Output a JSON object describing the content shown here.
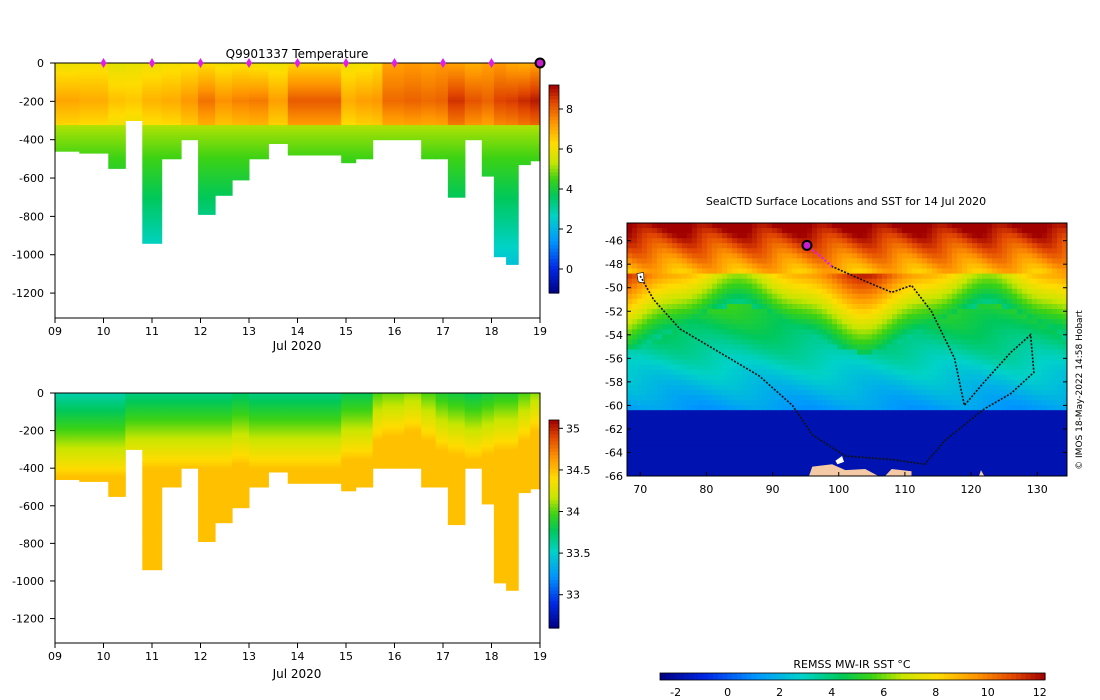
{
  "chart_data": [
    {
      "id": "temperature",
      "type": "heatmap",
      "title": "Q9901337  Temperature",
      "xlabel": "Jul 2020",
      "ylabel": "",
      "x_ticks": [
        "09",
        "10",
        "11",
        "12",
        "13",
        "14",
        "15",
        "16",
        "17",
        "18",
        "19"
      ],
      "xlim": [
        9,
        19
      ],
      "y_ticks": [
        "0",
        "-200",
        "-400",
        "-600",
        "-800",
        "-1000",
        "-1200"
      ],
      "ylim": [
        -1330,
        0
      ],
      "colorbar": {
        "ticks": [
          "0",
          "2",
          "4",
          "6",
          "8"
        ],
        "range": [
          -1.2,
          9.2
        ]
      },
      "profiles": [
        {
          "t": 9.0,
          "max_depth": 460,
          "surf": 6.0,
          "peak": 7.1
        },
        {
          "t": 9.5,
          "max_depth": 470,
          "surf": 6.1,
          "peak": 7.0
        },
        {
          "t": 10.1,
          "max_depth": 550,
          "surf": 5.8,
          "peak": 6.7
        },
        {
          "t": 10.45,
          "max_depth": 300,
          "surf": 5.9,
          "peak": 6.6
        },
        {
          "t": 10.8,
          "max_depth": 940,
          "surf": 6.0,
          "peak": 6.9
        },
        {
          "t": 11.2,
          "max_depth": 500,
          "surf": 6.1,
          "peak": 7.0
        },
        {
          "t": 11.6,
          "max_depth": 400,
          "surf": 6.2,
          "peak": 7.3
        },
        {
          "t": 11.95,
          "max_depth": 790,
          "surf": 6.3,
          "peak": 7.8
        },
        {
          "t": 12.3,
          "max_depth": 690,
          "surf": 6.1,
          "peak": 7.4
        },
        {
          "t": 12.65,
          "max_depth": 610,
          "surf": 6.2,
          "peak": 7.6
        },
        {
          "t": 13.0,
          "max_depth": 500,
          "surf": 6.1,
          "peak": 7.7
        },
        {
          "t": 13.4,
          "max_depth": 420,
          "surf": 6.0,
          "peak": 7.2
        },
        {
          "t": 13.8,
          "max_depth": 480,
          "surf": 6.4,
          "peak": 8.1
        },
        {
          "t": 14.9,
          "max_depth": 520,
          "surf": 6.0,
          "peak": 7.0
        },
        {
          "t": 15.2,
          "max_depth": 500,
          "surf": 6.1,
          "peak": 7.2
        },
        {
          "t": 15.55,
          "max_depth": 400,
          "surf": 6.3,
          "peak": 7.3
        },
        {
          "t": 15.75,
          "max_depth": 400,
          "surf": 7.2,
          "peak": 7.9
        },
        {
          "t": 16.2,
          "max_depth": 400,
          "surf": 7.3,
          "peak": 8.0
        },
        {
          "t": 16.55,
          "max_depth": 500,
          "surf": 7.2,
          "peak": 7.9
        },
        {
          "t": 16.85,
          "max_depth": 500,
          "surf": 7.3,
          "peak": 8.0
        },
        {
          "t": 17.1,
          "max_depth": 700,
          "surf": 7.2,
          "peak": 8.6
        },
        {
          "t": 17.45,
          "max_depth": 400,
          "surf": 7.0,
          "peak": 8.2
        },
        {
          "t": 17.8,
          "max_depth": 590,
          "surf": 7.2,
          "peak": 8.0
        },
        {
          "t": 18.05,
          "max_depth": 1010,
          "surf": 7.3,
          "peak": 8.4
        },
        {
          "t": 18.3,
          "max_depth": 1050,
          "surf": 7.1,
          "peak": 8.5
        },
        {
          "t": 18.55,
          "max_depth": 530,
          "surf": 7.0,
          "peak": 8.7
        },
        {
          "t": 18.8,
          "max_depth": 510,
          "surf": 7.2,
          "peak": 8.9
        }
      ],
      "markers": [
        10,
        11,
        12,
        13,
        14,
        15,
        16,
        17,
        18
      ],
      "current": 19.0
    },
    {
      "id": "salinity",
      "type": "heatmap",
      "title": "",
      "xlabel": "Jul 2020",
      "ylabel": "",
      "x_ticks": [
        "09",
        "10",
        "11",
        "12",
        "13",
        "14",
        "15",
        "16",
        "17",
        "18",
        "19"
      ],
      "xlim": [
        9,
        19
      ],
      "y_ticks": [
        "0",
        "-200",
        "-400",
        "-600",
        "-800",
        "-1000",
        "-1200"
      ],
      "ylim": [
        -1330,
        0
      ],
      "colorbar": {
        "ticks": [
          "33",
          "33.5",
          "34",
          "34.5",
          "35"
        ],
        "range": [
          32.6,
          35.1
        ]
      },
      "profiles": [
        {
          "t": 9.0,
          "max_depth": 460,
          "surf": 33.6
        },
        {
          "t": 9.5,
          "max_depth": 470,
          "surf": 33.6
        },
        {
          "t": 10.1,
          "max_depth": 550,
          "surf": 33.6
        },
        {
          "t": 10.45,
          "max_depth": 300,
          "surf": 33.7
        },
        {
          "t": 10.8,
          "max_depth": 940,
          "surf": 33.7
        },
        {
          "t": 11.2,
          "max_depth": 500,
          "surf": 33.7
        },
        {
          "t": 11.6,
          "max_depth": 400,
          "surf": 33.7
        },
        {
          "t": 11.95,
          "max_depth": 790,
          "surf": 33.7
        },
        {
          "t": 12.3,
          "max_depth": 690,
          "surf": 33.7
        },
        {
          "t": 12.65,
          "max_depth": 610,
          "surf": 33.75
        },
        {
          "t": 13.0,
          "max_depth": 500,
          "surf": 33.7
        },
        {
          "t": 13.4,
          "max_depth": 420,
          "surf": 33.7
        },
        {
          "t": 13.8,
          "max_depth": 480,
          "surf": 33.7
        },
        {
          "t": 14.9,
          "max_depth": 520,
          "surf": 33.8
        },
        {
          "t": 15.2,
          "max_depth": 500,
          "surf": 33.8
        },
        {
          "t": 15.55,
          "max_depth": 400,
          "surf": 34.0
        },
        {
          "t": 15.75,
          "max_depth": 400,
          "surf": 34.05
        },
        {
          "t": 16.2,
          "max_depth": 400,
          "surf": 34.1
        },
        {
          "t": 16.55,
          "max_depth": 500,
          "surf": 34.0
        },
        {
          "t": 16.85,
          "max_depth": 500,
          "surf": 33.9
        },
        {
          "t": 17.1,
          "max_depth": 700,
          "surf": 33.85
        },
        {
          "t": 17.45,
          "max_depth": 400,
          "surf": 33.8
        },
        {
          "t": 17.8,
          "max_depth": 590,
          "surf": 33.85
        },
        {
          "t": 18.05,
          "max_depth": 1010,
          "surf": 33.9
        },
        {
          "t": 18.3,
          "max_depth": 1050,
          "surf": 33.9
        },
        {
          "t": 18.55,
          "max_depth": 530,
          "surf": 34.0
        },
        {
          "t": 18.8,
          "max_depth": 510,
          "surf": 34.1
        }
      ]
    },
    {
      "id": "sst_map",
      "type": "heatmap",
      "title": "SealCTD Surface Locations and SST for 14 Jul 2020",
      "xlabel": "",
      "ylabel": "",
      "x_ticks": [
        "70",
        "80",
        "90",
        "100",
        "110",
        "120",
        "130"
      ],
      "xlim": [
        68,
        134.5
      ],
      "y_ticks": [
        "-46",
        "-48",
        "-50",
        "-52",
        "-54",
        "-56",
        "-58",
        "-60",
        "-62",
        "-64",
        "-66"
      ],
      "ylim": [
        -66,
        -44.5
      ],
      "colorbar": {
        "label": "REMSS MW-IR SST °C",
        "ticks": [
          "-2",
          "0",
          "2",
          "4",
          "6",
          "8",
          "10",
          "12"
        ],
        "range": [
          -2.6,
          12.2
        ]
      },
      "credit": "© IMOS 18-May-2022 14:58 Hobart",
      "track_path": [
        [
          70,
          -49
        ],
        [
          72,
          -51
        ],
        [
          76,
          -53.5
        ],
        [
          82,
          -55.5
        ],
        [
          88,
          -57.5
        ],
        [
          93,
          -60
        ],
        [
          96,
          -62.5
        ],
        [
          101,
          -64.3
        ],
        [
          108,
          -64.6
        ],
        [
          113,
          -65
        ],
        [
          116,
          -63
        ],
        [
          122,
          -60.3
        ],
        [
          126,
          -59
        ],
        [
          129.5,
          -57.2
        ],
        [
          129,
          -54
        ],
        [
          126,
          -55.5
        ],
        [
          122,
          -58
        ],
        [
          119,
          -60
        ],
        [
          117.5,
          -56
        ],
        [
          114,
          -52
        ],
        [
          111,
          -49.8
        ],
        [
          108,
          -50.4
        ],
        [
          103,
          -49.2
        ],
        [
          99,
          -48.2
        ]
      ],
      "recent_track": [
        [
          95.5,
          -46.6
        ],
        [
          97,
          -47.2
        ],
        [
          99,
          -48.2
        ]
      ],
      "current_position": [
        95.2,
        -46.4
      ]
    }
  ]
}
